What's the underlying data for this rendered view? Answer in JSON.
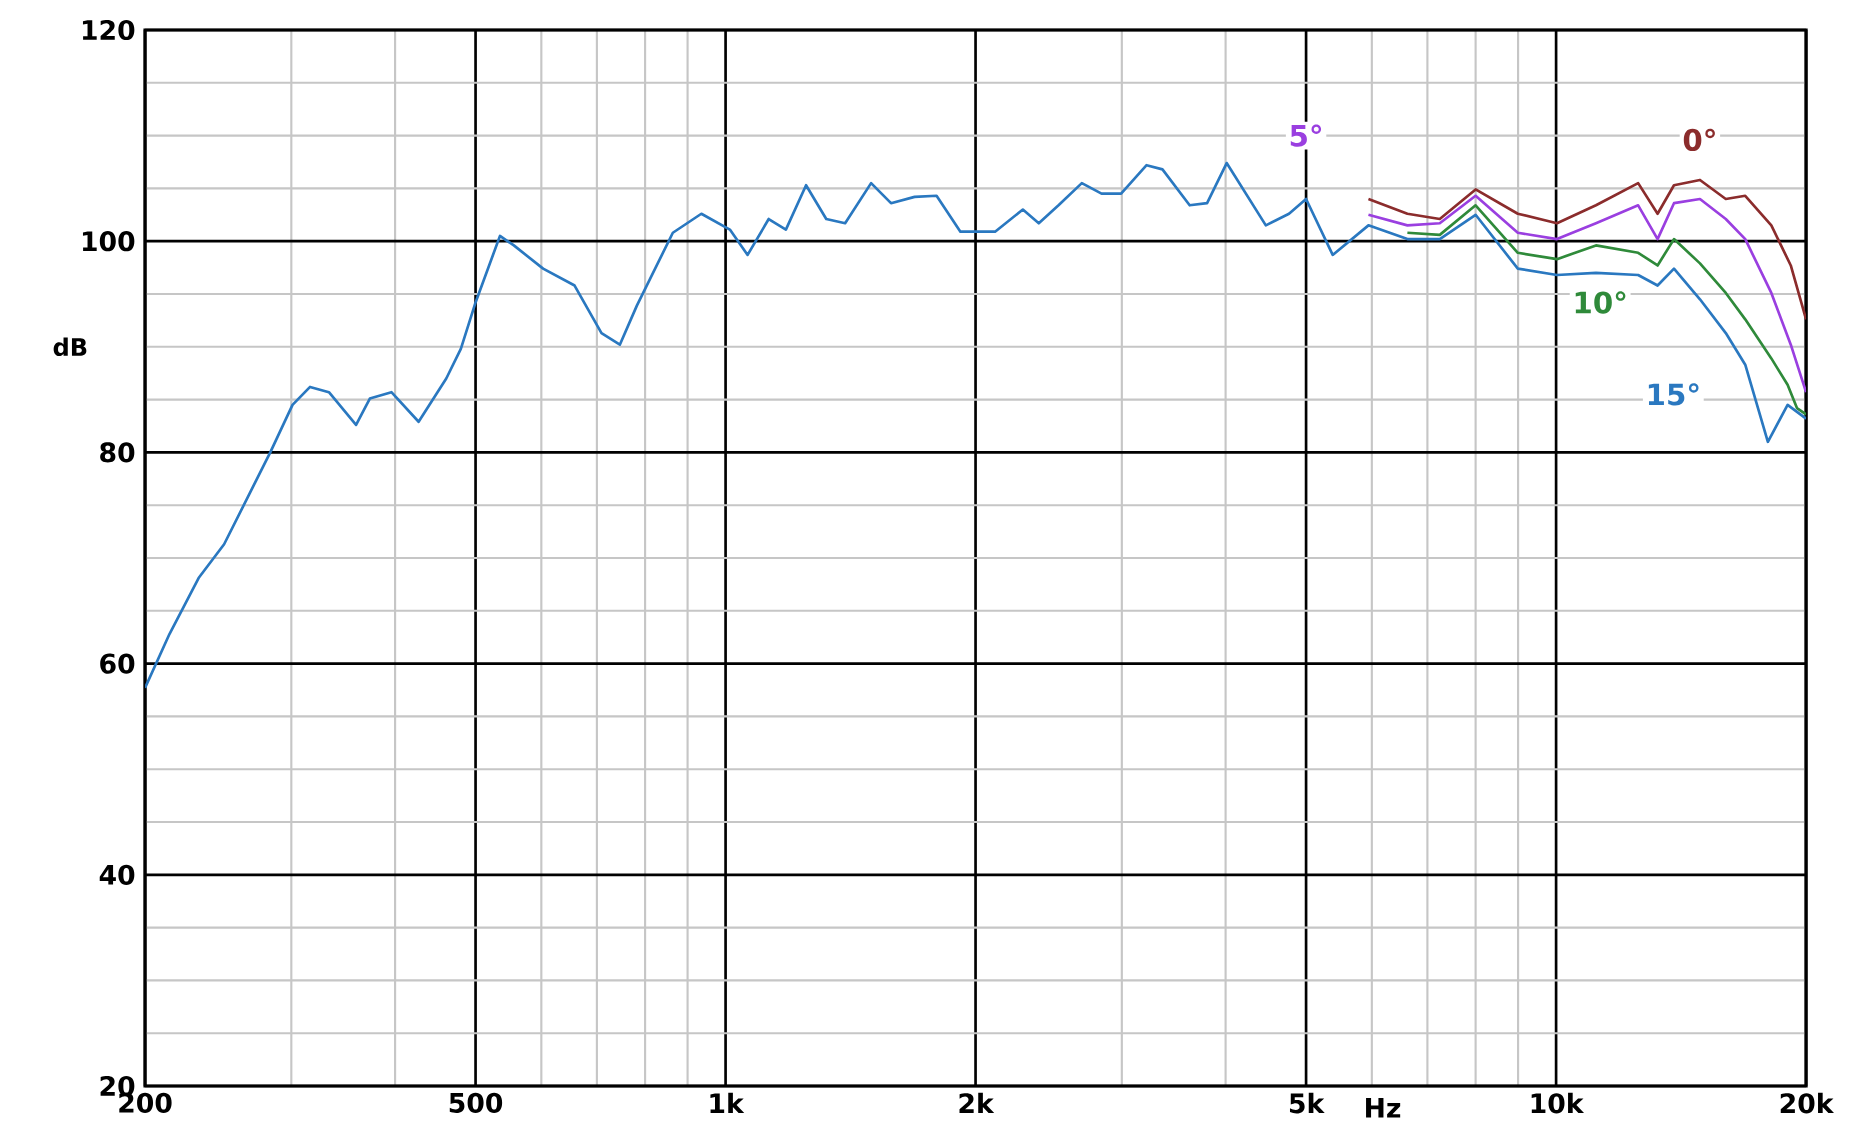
{
  "chart_data": {
    "type": "line",
    "xlabel": "Hz",
    "ylabel": "dB",
    "log": "x",
    "grid": true,
    "xlim": [
      200,
      20000
    ],
    "ylim": [
      20,
      120
    ],
    "xticks": [
      200,
      500,
      {
        "value": 1000,
        "label": "1k"
      },
      {
        "value": 2000,
        "label": "2k"
      },
      {
        "value": 5000,
        "label": "5k"
      },
      {
        "value": 10000,
        "label": "10k"
      },
      {
        "value": 20000,
        "label": "20k"
      }
    ],
    "yticks": [
      20,
      40,
      60,
      80,
      100,
      120
    ],
    "series": [
      {
        "name": "0°",
        "color": "#8b2c2c",
        "x": [
          5944,
          6622,
          7244,
          8000,
          8993,
          10025,
          11169,
          12555,
          13250,
          13866,
          14902,
          16008,
          16895,
          18163,
          19170,
          20000
        ],
        "values": [
          104.0,
          102.6,
          102.1,
          104.9,
          102.6,
          101.7,
          103.4,
          105.5,
          102.6,
          105.3,
          105.8,
          104.0,
          104.3,
          101.5,
          97.7,
          92.6
        ]
      },
      {
        "name": "5°",
        "color": "#9a3fe0",
        "x": [
          5944,
          6622,
          7244,
          8000,
          8993,
          10025,
          11169,
          12555,
          13250,
          13866,
          14902,
          16008,
          16895,
          18163,
          19170,
          20000
        ],
        "values": [
          102.5,
          101.5,
          101.7,
          104.3,
          100.8,
          100.2,
          101.7,
          103.4,
          100.2,
          103.6,
          104.0,
          102.1,
          100.2,
          95.1,
          90.2,
          85.7
        ]
      },
      {
        "name": "10°",
        "color": "#2f8a3a",
        "x": [
          6622,
          7244,
          8000,
          8993,
          10025,
          11169,
          12555,
          13250,
          13866,
          14902,
          16008,
          16895,
          18163,
          19002,
          19500,
          20000
        ],
        "values": [
          100.8,
          100.6,
          103.4,
          98.9,
          98.3,
          99.6,
          98.9,
          97.7,
          100.2,
          97.9,
          95.1,
          92.6,
          88.9,
          86.4,
          84.2,
          83.6
        ]
      },
      {
        "name": "15°",
        "color": "#2a78c0",
        "x": [
          200,
          214,
          232,
          249,
          283,
          301,
          316,
          333,
          359,
          373,
          396,
          427,
          461,
          480,
          500,
          535,
          556,
          603,
          658,
          709,
          746,
          782,
          864,
          935,
          1012,
          1063,
          1127,
          1182,
          1250,
          1322,
          1393,
          1497,
          1582,
          1689,
          1795,
          1918,
          2111,
          2280,
          2383,
          2517,
          2685,
          2836,
          2994,
          3213,
          3358,
          3621,
          3800,
          4012,
          4472,
          4769,
          5000,
          5383,
          5944,
          6622,
          7244,
          8000,
          8993,
          10025,
          11169,
          12555,
          13250,
          13866,
          14902,
          16008,
          16895,
          17990,
          19002,
          20000
        ],
        "values": [
          57.7,
          62.8,
          68.1,
          71.3,
          80.0,
          84.5,
          86.2,
          85.7,
          82.6,
          85.1,
          85.7,
          82.9,
          87.0,
          89.8,
          94.2,
          100.5,
          99.6,
          97.4,
          95.8,
          91.3,
          90.2,
          93.9,
          100.8,
          102.6,
          101.1,
          98.7,
          102.1,
          101.1,
          105.3,
          102.1,
          101.7,
          105.5,
          103.6,
          104.2,
          104.3,
          100.9,
          100.9,
          103.0,
          101.7,
          103.4,
          105.5,
          104.5,
          104.5,
          107.2,
          106.8,
          103.4,
          103.6,
          107.4,
          101.5,
          102.6,
          104.0,
          98.7,
          101.5,
          100.2,
          100.2,
          102.5,
          97.4,
          96.8,
          97.0,
          96.8,
          95.8,
          97.4,
          94.5,
          91.3,
          88.3,
          81.0,
          84.5,
          83.2
        ]
      }
    ]
  }
}
